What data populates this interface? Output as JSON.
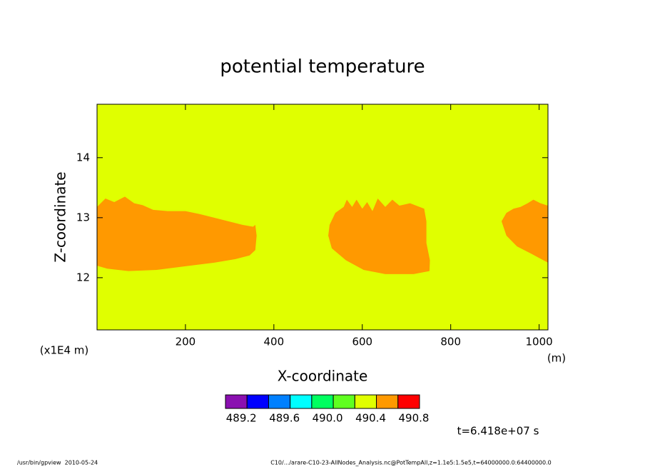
{
  "chart_data": {
    "type": "contour",
    "title": "potential temperature",
    "x_label": "X-coordinate",
    "y_label": "Z-coordinate",
    "x_unit": "(m)",
    "y_unit": "(x1E4 m)",
    "xlim": [
      0,
      1020
    ],
    "ylim": [
      11.13,
      14.89
    ],
    "xticks": [
      200,
      400,
      600,
      800,
      1000
    ],
    "yticks": [
      12,
      13,
      14
    ],
    "background_color": "#e0ff00",
    "regions": [
      {
        "color": "#ff9900",
        "x": [
          0,
          19,
          39,
          63,
          84,
          103,
          127,
          160,
          200,
          232,
          265,
          297,
          329,
          353,
          358,
          361,
          358,
          345,
          313,
          265,
          200,
          135,
          71,
          23,
          0
        ],
        "z": [
          13.18,
          13.32,
          13.26,
          13.35,
          13.24,
          13.21,
          13.13,
          13.11,
          13.11,
          13.06,
          13.0,
          12.94,
          12.88,
          12.85,
          12.88,
          12.7,
          12.46,
          12.37,
          12.31,
          12.25,
          12.19,
          12.13,
          12.11,
          12.15,
          12.2
        ]
      },
      {
        "color": "#ff9900",
        "x": [
          526,
          539,
          558,
          565,
          577,
          587,
          600,
          611,
          623,
          635,
          652,
          668,
          684,
          708,
          740,
          745,
          745,
          753,
          752,
          716,
          652,
          603,
          563,
          531,
          523
        ],
        "z": [
          12.88,
          13.08,
          13.18,
          13.3,
          13.18,
          13.3,
          13.15,
          13.26,
          13.11,
          13.32,
          13.18,
          13.3,
          13.2,
          13.24,
          13.15,
          12.94,
          12.58,
          12.29,
          12.11,
          12.06,
          12.06,
          12.13,
          12.29,
          12.49,
          12.7
        ]
      },
      {
        "color": "#ff9900",
        "x": [
          1020,
          1003,
          987,
          974,
          958,
          942,
          926,
          915,
          926,
          950,
          982,
          1020
        ],
        "z": [
          13.2,
          13.24,
          13.3,
          13.24,
          13.18,
          13.15,
          13.08,
          12.94,
          12.7,
          12.52,
          12.4,
          12.25
        ]
      }
    ],
    "colorbar": {
      "levels": [
        489.0,
        489.2,
        489.4,
        489.6,
        489.8,
        490.0,
        490.2,
        490.4,
        490.6,
        490.8
      ],
      "colors": [
        "#8a10b0",
        "#0000ff",
        "#0080ff",
        "#00ffff",
        "#00ff60",
        "#60ff20",
        "#e0ff00",
        "#ff9900",
        "#ff0000"
      ],
      "ticks": [
        489.2,
        489.6,
        {
          "value": 490.0,
          "label": "490.0"
        },
        490.4,
        490.8
      ]
    },
    "time_label": "t=6.418e+07 s",
    "footer_left": "/usr/bin/gpview  2010-05-24",
    "footer_right": "C10/.../arare-C10-23-AllNodes_Analysis.nc@PotTempAll,z=1.1e5:1.5e5,t=64000000.0:64400000.0"
  }
}
